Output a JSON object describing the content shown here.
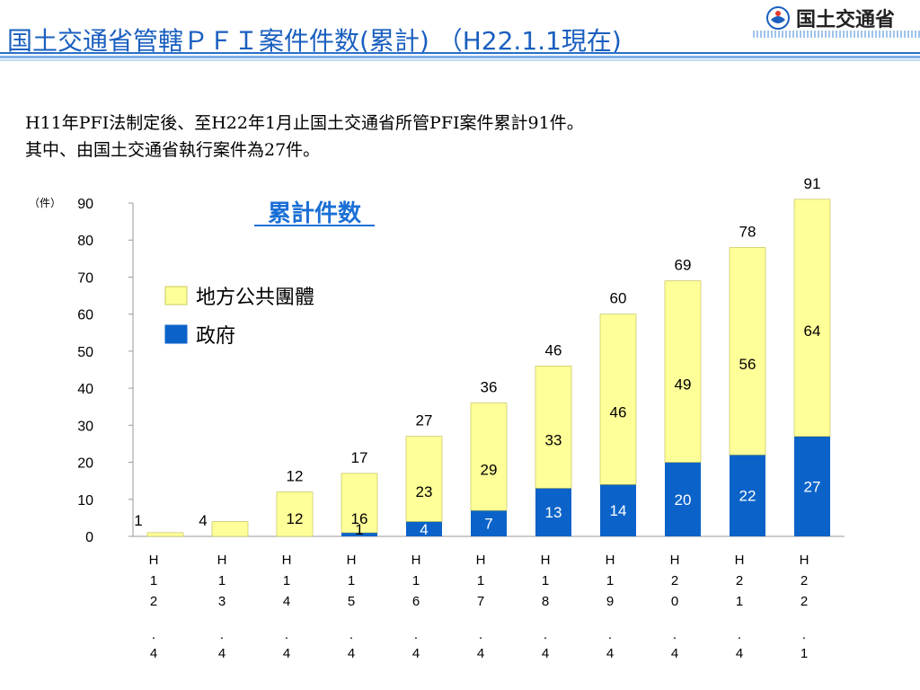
{
  "header": {
    "title": "国土交通省管轄ＰＦＩ案件件数(累計) （H22.1.1現在)",
    "logo_text": "国土交通省"
  },
  "intro": {
    "line1": "H11年PFI法制定後、至H22年1月止国土交通省所管PFI案件累計91件。",
    "line2": "其中、由国土交通省執行案件為27件。"
  },
  "colors": {
    "local": "#ffff99",
    "government": "#0b63c9",
    "title": "#1a5fbf",
    "chart_title": "#1a6fd6"
  },
  "chart_data": {
    "type": "bar",
    "stacked": true,
    "title": "累計件数",
    "ylabel": "（件）",
    "ylim": [
      0,
      90
    ],
    "yticks": [
      0,
      10,
      20,
      30,
      40,
      50,
      60,
      70,
      80,
      90
    ],
    "categories": [
      "H12.4",
      "H13.4",
      "H14.4",
      "H15.4",
      "H16.4",
      "H17.4",
      "H18.4",
      "H19.4",
      "H20.4",
      "H21.4",
      "H22.1"
    ],
    "category_chars": [
      [
        "H",
        "1",
        "2",
        ".",
        "4"
      ],
      [
        "H",
        "1",
        "3",
        ".",
        "4"
      ],
      [
        "H",
        "1",
        "4",
        ".",
        "4"
      ],
      [
        "H",
        "1",
        "5",
        ".",
        "4"
      ],
      [
        "H",
        "1",
        "6",
        ".",
        "4"
      ],
      [
        "H",
        "1",
        "7",
        ".",
        "4"
      ],
      [
        "H",
        "1",
        "8",
        ".",
        "4"
      ],
      [
        "H",
        "1",
        "9",
        ".",
        "4"
      ],
      [
        "H",
        "2",
        "0",
        ".",
        "4"
      ],
      [
        "H",
        "2",
        "1",
        ".",
        "4"
      ],
      [
        "H",
        "2",
        "2",
        ".",
        "1"
      ]
    ],
    "series": [
      {
        "name": "政府",
        "key": "government",
        "values": [
          0,
          0,
          0,
          1,
          4,
          7,
          13,
          14,
          20,
          22,
          27
        ]
      },
      {
        "name": "地方公共團體",
        "key": "local",
        "values": [
          1,
          4,
          12,
          16,
          23,
          29,
          33,
          46,
          49,
          56,
          64
        ]
      }
    ],
    "totals": [
      1,
      4,
      12,
      17,
      27,
      36,
      46,
      60,
      69,
      78,
      91
    ],
    "legend": [
      {
        "label": "地方公共團體",
        "key": "local"
      },
      {
        "label": "政府",
        "key": "government"
      }
    ],
    "legend_position": "upper-left"
  }
}
